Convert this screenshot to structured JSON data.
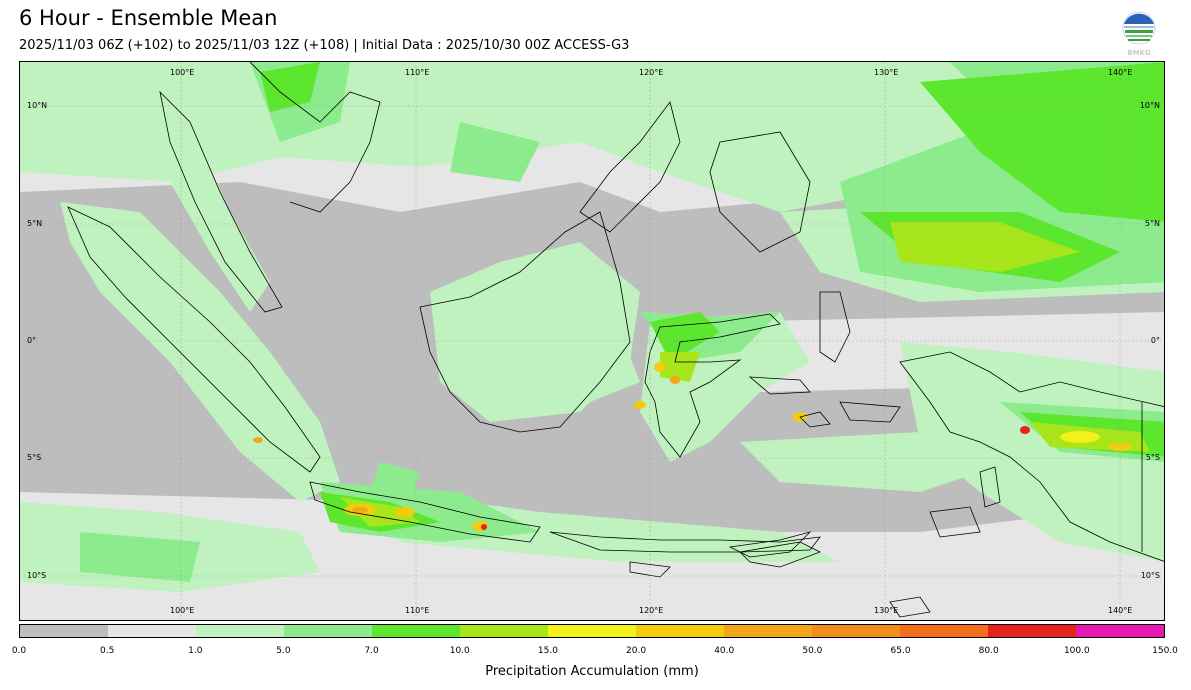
{
  "header": {
    "title": "6 Hour - Ensemble Mean",
    "subtitle": "2025/11/03 06Z (+102) to 2025/11/03 12Z (+108) | Initial Data : 2025/10/30 00Z ACCESS-G3",
    "logo_text": "BMKG"
  },
  "map": {
    "lon_labels": [
      "100°E",
      "110°E",
      "120°E",
      "130°E",
      "140°E"
    ],
    "lat_labels": [
      "10°N",
      "5°N",
      "0°",
      "5°S",
      "10°S"
    ],
    "extent": {
      "lon_min": 93,
      "lon_max": 141.8,
      "lat_min": -11.8,
      "lat_max": 11.8
    }
  },
  "colorbar": {
    "label": "Precipitation Accumulation (mm)",
    "ticks": [
      "0.0",
      "0.5",
      "1.0",
      "5.0",
      "7.0",
      "10.0",
      "15.0",
      "20.0",
      "40.0",
      "50.0",
      "65.0",
      "80.0",
      "100.0",
      "150.0"
    ],
    "colors": [
      "#bdbdbd",
      "#e6e6e6",
      "#bff2bf",
      "#8ceb8c",
      "#5ce62e",
      "#a6e61a",
      "#f2f21a",
      "#f2cc0d",
      "#f2a61a",
      "#f28c1a",
      "#f06e1e",
      "#e8231e",
      "#e619b3"
    ]
  }
}
